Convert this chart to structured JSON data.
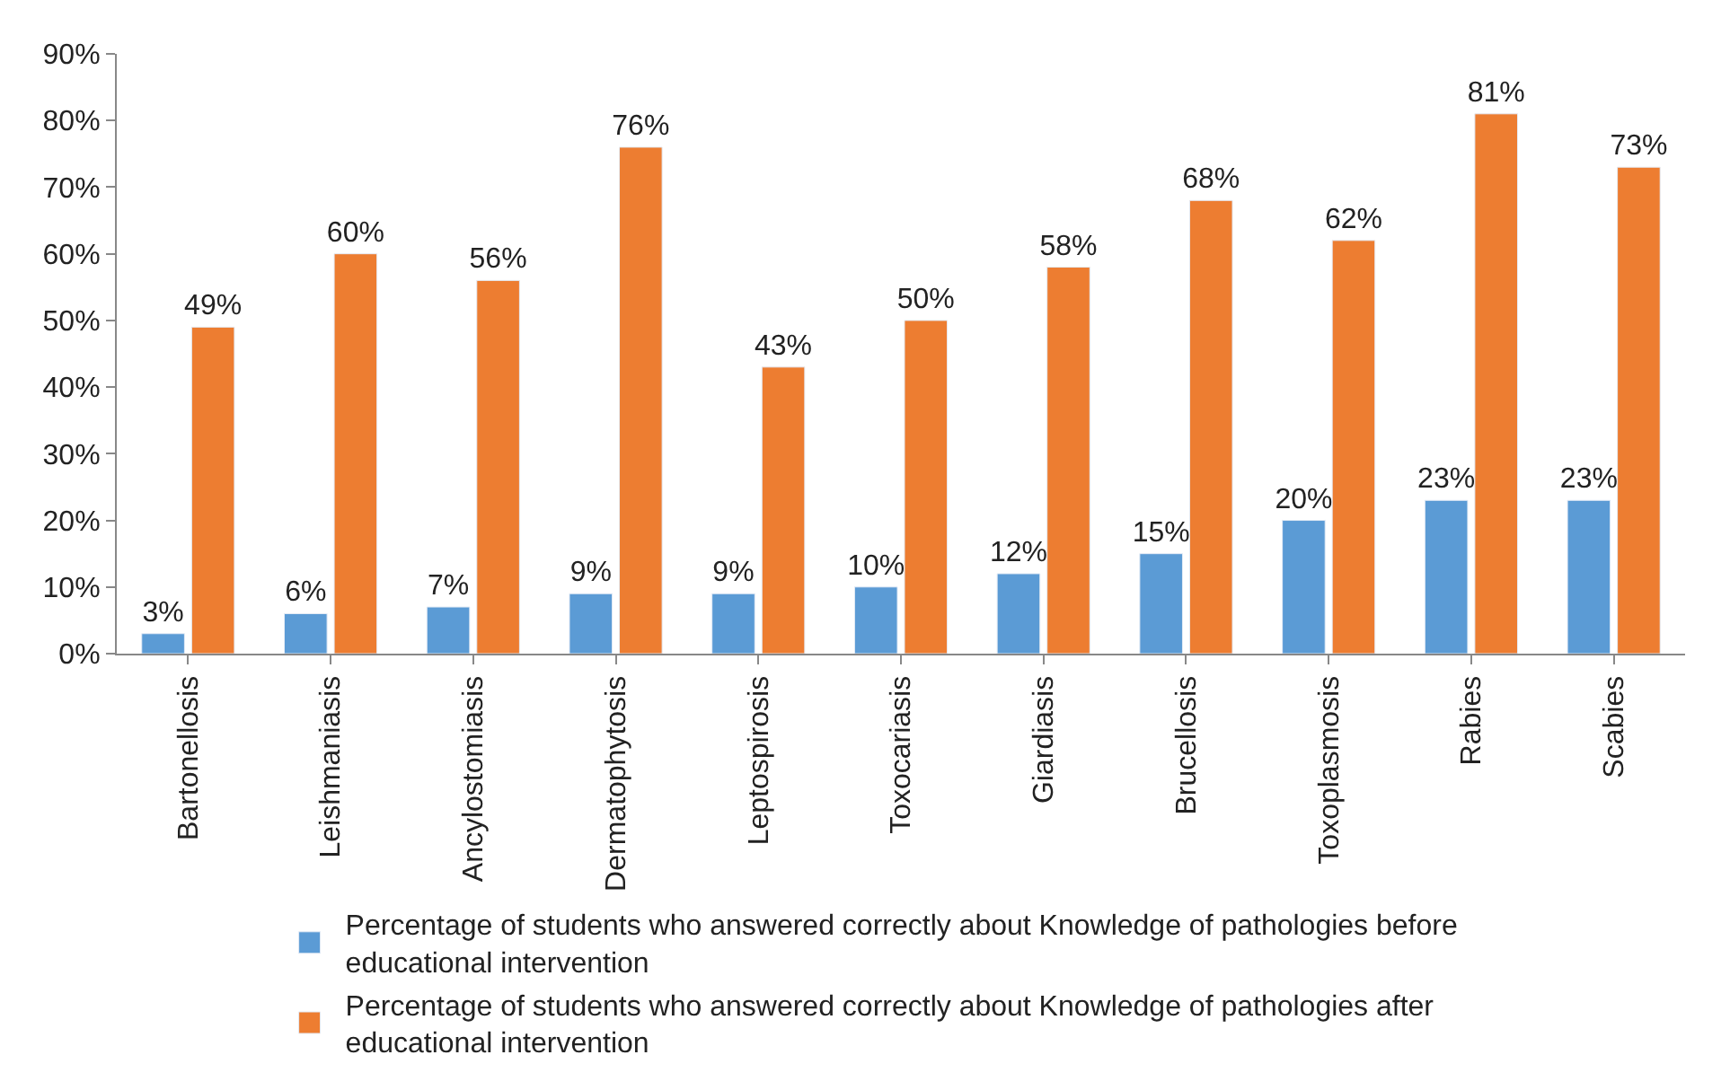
{
  "chart_data": {
    "type": "bar",
    "categories": [
      "Bartonellosis",
      "Leishmaniasis",
      "Ancylostomiasis",
      "Dermatophytosis",
      "Leptospirosis",
      "Toxocariasis",
      "Giardiasis",
      "Brucellosis",
      "Toxoplasmosis",
      "Rabies",
      "Scabies"
    ],
    "series": [
      {
        "name": "Percentage of students who answered correctly about Knowledge of pathologies before educational intervention",
        "color": "#5b9bd5",
        "values": [
          3,
          6,
          7,
          9,
          9,
          10,
          12,
          15,
          20,
          23,
          23
        ],
        "value_labels": [
          "3%",
          "6%",
          "7%",
          "9%",
          "9%",
          "10%",
          "12%",
          "15%",
          "20%",
          "23%",
          "23%"
        ]
      },
      {
        "name": "Percentage of students who answered correctly about Knowledge of pathologies after educational intervention",
        "color": "#ed7d31",
        "values": [
          49,
          60,
          56,
          76,
          43,
          50,
          58,
          68,
          62,
          81,
          73
        ],
        "value_labels": [
          "49%",
          "60%",
          "56%",
          "76%",
          "43%",
          "50%",
          "58%",
          "68%",
          "62%",
          "81%",
          "73%"
        ]
      }
    ],
    "ylim": [
      0,
      90
    ],
    "yticks": [
      {
        "value": 0,
        "label": "0%"
      },
      {
        "value": 10,
        "label": "10%"
      },
      {
        "value": 20,
        "label": "20%"
      },
      {
        "value": 30,
        "label": "30%"
      },
      {
        "value": 40,
        "label": "40%"
      },
      {
        "value": 50,
        "label": "50%"
      },
      {
        "value": 60,
        "label": "60%"
      },
      {
        "value": 70,
        "label": "70%"
      },
      {
        "value": 80,
        "label": "80%"
      },
      {
        "value": 90,
        "label": "90%"
      }
    ],
    "legend": "bottom"
  }
}
